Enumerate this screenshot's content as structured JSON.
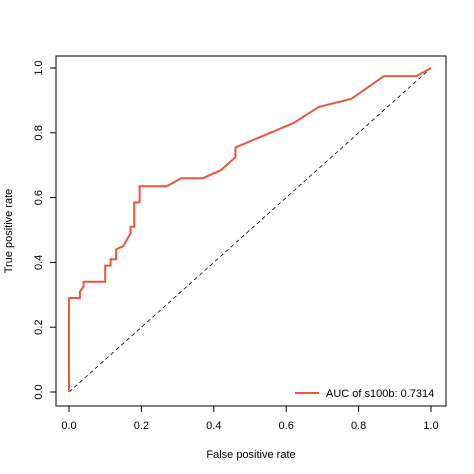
{
  "chart_data": {
    "type": "line",
    "title": "",
    "xlabel": "False positive rate",
    "ylabel": "True positive rate",
    "xlim": [
      0,
      1
    ],
    "ylim": [
      0,
      1
    ],
    "xticks": [
      "0.0",
      "0.2",
      "0.4",
      "0.6",
      "0.8",
      "1.0"
    ],
    "yticks": [
      "0.0",
      "0.2",
      "0.4",
      "0.6",
      "0.8",
      "1.0"
    ],
    "grid": false,
    "legend_position": "bottom-right",
    "series": [
      {
        "name": "AUC of s100b: 0.7314",
        "color": "#e8573e",
        "x": [
          0.0,
          0.0,
          0.0,
          0.03,
          0.03,
          0.04,
          0.04,
          0.1,
          0.1,
          0.115,
          0.115,
          0.13,
          0.13,
          0.15,
          0.16,
          0.17,
          0.17,
          0.18,
          0.18,
          0.195,
          0.195,
          0.27,
          0.31,
          0.37,
          0.42,
          0.46,
          0.46,
          0.62,
          0.69,
          0.78,
          0.87,
          0.96,
          1.0
        ],
        "y": [
          0.0,
          0.29,
          0.29,
          0.29,
          0.31,
          0.325,
          0.34,
          0.34,
          0.39,
          0.39,
          0.41,
          0.41,
          0.44,
          0.45,
          0.47,
          0.49,
          0.51,
          0.51,
          0.585,
          0.585,
          0.635,
          0.635,
          0.66,
          0.66,
          0.685,
          0.725,
          0.755,
          0.83,
          0.88,
          0.905,
          0.975,
          0.975,
          1.0
        ]
      }
    ],
    "reference_line": {
      "style": "dashed",
      "x": [
        0,
        1
      ],
      "y": [
        0,
        1
      ]
    }
  }
}
